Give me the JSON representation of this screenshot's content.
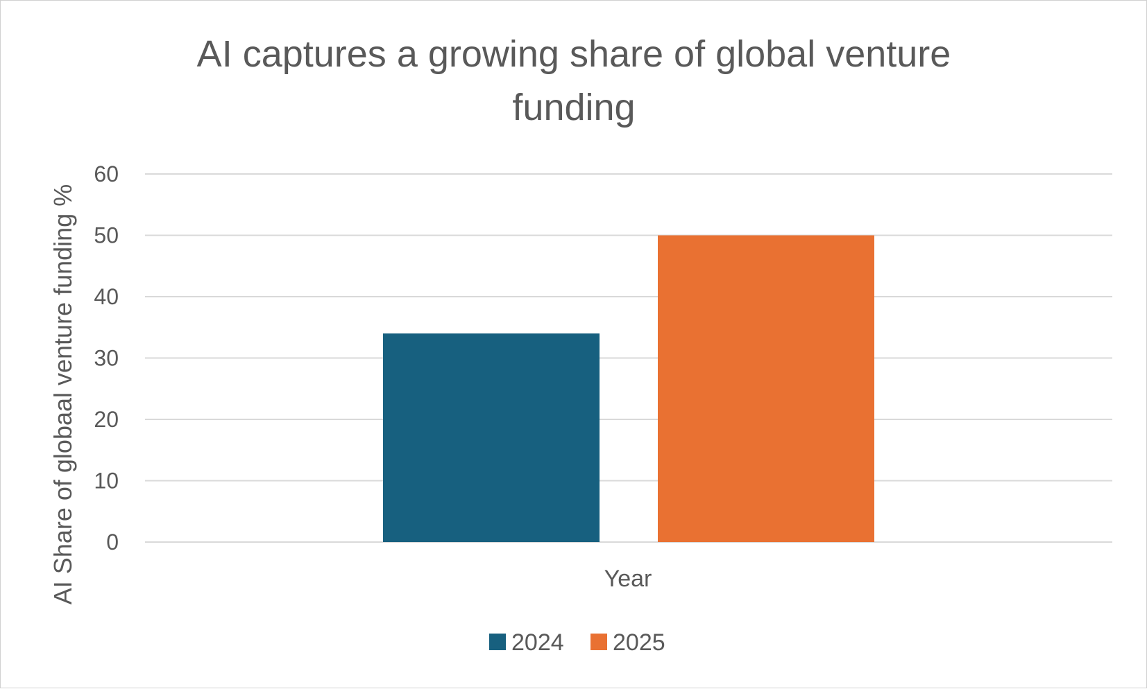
{
  "chart_data": {
    "type": "bar",
    "title_lines": [
      "AI captures a growing share of global venture",
      "funding"
    ],
    "categories": [
      "Year"
    ],
    "series": [
      {
        "name": "2024",
        "values": [
          34
        ],
        "color": "#17607F"
      },
      {
        "name": "2025",
        "values": [
          50
        ],
        "color": "#E97132"
      }
    ],
    "xlabel": "Year",
    "ylabel": "AI Share of globaal venture funding %",
    "ylim": [
      0,
      60
    ],
    "yticks": [
      0,
      10,
      20,
      30,
      40,
      50,
      60
    ],
    "grid": true,
    "legend_position": "bottom"
  }
}
